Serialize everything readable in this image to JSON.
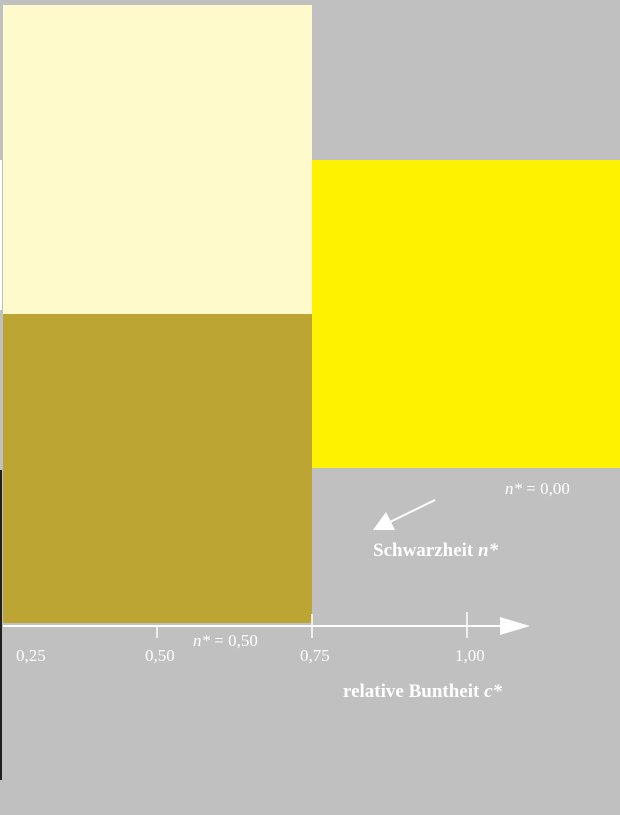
{
  "colors": {
    "background": "#c0c0c0",
    "pale_yellow": "#fefacb",
    "olive": "#bda533",
    "yellow": "#fff200",
    "white": "#ffffff",
    "dark": "#202020"
  },
  "axis": {
    "title_text": "relative Buntheit ",
    "title_var": "c*",
    "ticks": [
      "0,25",
      "0,50",
      "0,75",
      "1,00"
    ]
  },
  "blackness": {
    "title_text": "Schwarzheit ",
    "title_var": "n*",
    "labels": [
      {
        "var": "n*",
        "text": " = 0,00"
      },
      {
        "var": "n*",
        "text": " = 0,50"
      }
    ]
  }
}
